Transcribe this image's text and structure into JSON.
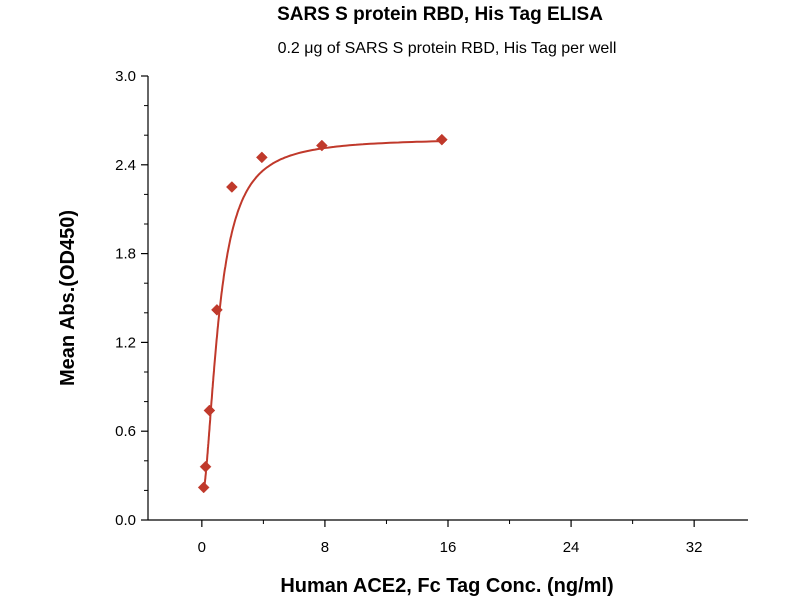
{
  "chart_data": {
    "type": "scatter",
    "title": "SARS S protein RBD, His Tag ELISA",
    "subtitle": "0.2 μg of SARS S protein RBD, His Tag per well",
    "xlabel": "Human ACE2, Fc Tag Conc. (ng/ml)",
    "ylabel": "Mean Abs.(OD450)",
    "xlim": [
      -3.5,
      35.5
    ],
    "ylim": [
      0,
      3.0
    ],
    "x_ticks": [
      "0",
      "8",
      "16",
      "24",
      "32"
    ],
    "x_tick_values": [
      0,
      8,
      16,
      24,
      32
    ],
    "y_ticks": [
      "0.0",
      "0.6",
      "1.2",
      "1.8",
      "2.4",
      "3.0"
    ],
    "y_tick_values": [
      0,
      0.6,
      1.2,
      1.8,
      2.4,
      3.0
    ],
    "grid": false,
    "color": "#c0392b",
    "series": [
      {
        "points": [
          {
            "x": 0.12,
            "y": 0.22
          },
          {
            "x": 0.24,
            "y": 0.36
          },
          {
            "x": 0.49,
            "y": 0.74
          },
          {
            "x": 0.98,
            "y": 1.42
          },
          {
            "x": 1.95,
            "y": 2.25
          },
          {
            "x": 3.9,
            "y": 2.45
          },
          {
            "x": 7.8,
            "y": 2.53
          },
          {
            "x": 15.6,
            "y": 2.57
          }
        ],
        "fit": "4-parameter logistic"
      }
    ]
  }
}
